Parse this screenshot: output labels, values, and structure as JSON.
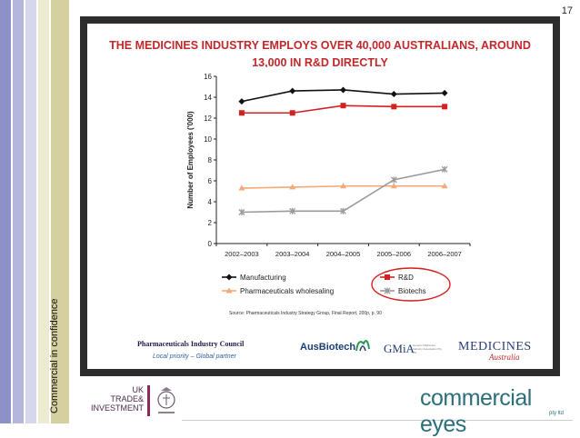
{
  "page_number": "17",
  "side_label": "Commercial in confidence",
  "slide": {
    "title_line1": "THE MEDICINES INDUSTRY EMPLOYS OVER 40,000 AUSTRALIANS, AROUND",
    "title_line2": "13,000 IN R&D DIRECTLY",
    "source": "Source: Pharmaceuticals Industry Strategy Group, Final Report, 200p, p. 90",
    "council_name": "Pharmaceuticals Industry Council",
    "council_tagline": "Local priority – Global partner",
    "logos": {
      "ausbiotech": "AusBiotech",
      "gmia": "GMiA",
      "gmia_sub": "Generic Medicines Industry Association Pty Ltd",
      "medicines": "MEDICINES",
      "medicines_sub": "Australia"
    }
  },
  "footer": {
    "uk_trade_lines": [
      "UK",
      "TRADE&",
      "INVESTMENT"
    ],
    "commercial_eyes": "commercial eyes",
    "commercial_eyes_sub": "pty ltd"
  },
  "colors": {
    "title": "#c0282a",
    "manufacturing": "#111111",
    "rd": "#d42020",
    "pharma_wholesaling": "#f5a878",
    "biotechs": "#9a9a9a",
    "legend_circle": "#d42020",
    "stripe_purple": "#b4b6dc",
    "stripe_tan": "#d4d0a0"
  },
  "chart_data": {
    "type": "line",
    "x": [
      "2002–2003",
      "2003–2004",
      "2004–2005",
      "2005–2006",
      "2006–2007"
    ],
    "ylabel": "Number of Employees ('000)",
    "xlabel": "",
    "ylim": [
      0,
      16
    ],
    "yticks": [
      0,
      2,
      4,
      6,
      8,
      10,
      12,
      14,
      16
    ],
    "grid": false,
    "legend_position": "bottom",
    "series": [
      {
        "name": "Manufacturing",
        "values": [
          13.6,
          14.6,
          14.7,
          14.3,
          14.4
        ],
        "marker": "diamond",
        "color": "#111111"
      },
      {
        "name": "R&D",
        "values": [
          12.5,
          12.5,
          13.2,
          13.1,
          13.1
        ],
        "marker": "square",
        "color": "#d42020"
      },
      {
        "name": "Pharmaceuticals wholesaling",
        "values": [
          5.3,
          5.4,
          5.5,
          5.5,
          5.5
        ],
        "marker": "triangle",
        "color": "#f5a878"
      },
      {
        "name": "Biotechs",
        "values": [
          3.0,
          3.1,
          3.1,
          6.1,
          7.1
        ],
        "marker": "x",
        "color": "#9a9a9a"
      }
    ]
  }
}
